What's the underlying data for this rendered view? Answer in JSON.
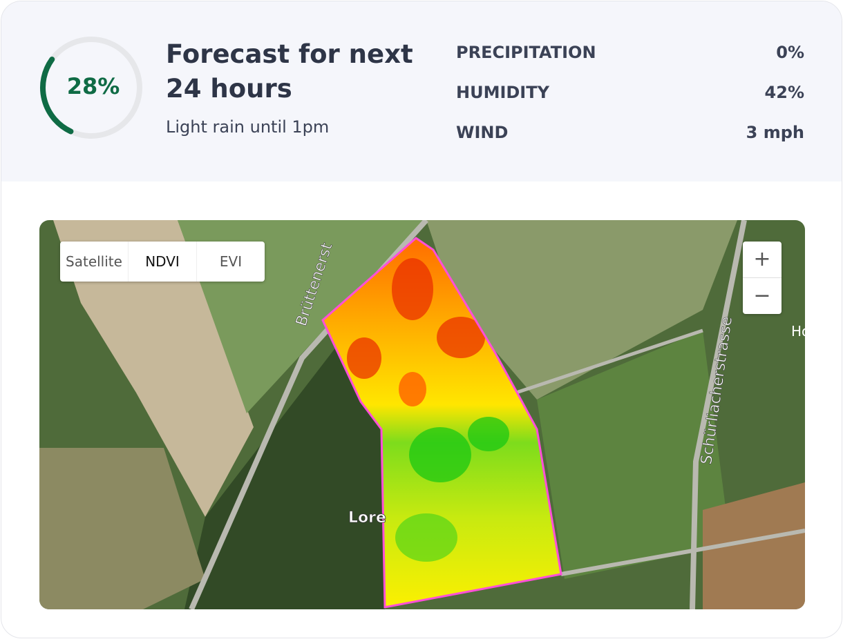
{
  "gauge": {
    "value": 28,
    "label": "28%"
  },
  "forecast": {
    "title_line1": "Forecast for next",
    "title_line2": "24 hours",
    "subtitle": "Light rain until 1pm"
  },
  "stats": [
    {
      "label": "PRECIPITATION",
      "value": "0%"
    },
    {
      "label": "HUMIDITY",
      "value": "42%"
    },
    {
      "label": "WIND",
      "value": "3 mph"
    }
  ],
  "map": {
    "tabs": [
      "Satellite",
      "NDVI",
      "EVI"
    ],
    "active_tab": 1,
    "zoom_in": "+",
    "zoom_out": "−",
    "labels": [
      "Brüttenerst",
      "Schürliacherstrasse",
      "Lore",
      "Ho"
    ]
  }
}
